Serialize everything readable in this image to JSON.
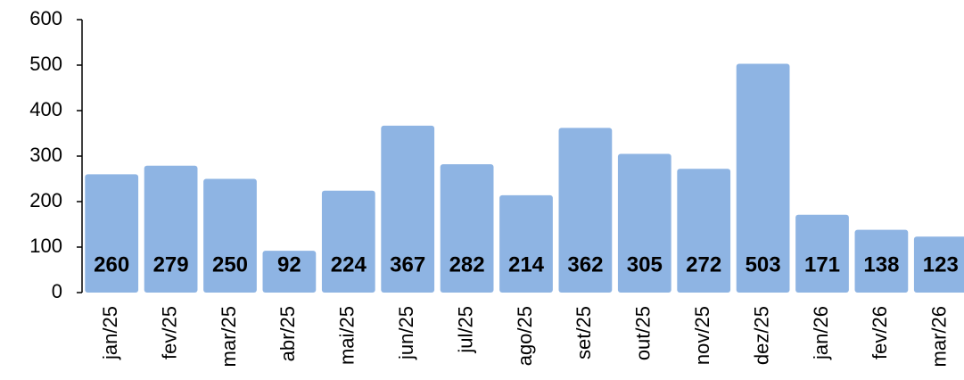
{
  "chart_data": {
    "type": "bar",
    "categories": [
      "jan/25",
      "fev/25",
      "mar/25",
      "abr/25",
      "mai/25",
      "jun/25",
      "jul/25",
      "ago/25",
      "set/25",
      "out/25",
      "nov/25",
      "dez/25",
      "jan/26",
      "fev/26",
      "mar/26"
    ],
    "values": [
      260,
      279,
      250,
      92,
      224,
      367,
      282,
      214,
      362,
      305,
      272,
      503,
      171,
      138,
      123
    ],
    "color": "#8EB4E3",
    "ylim": [
      0,
      600
    ],
    "yticks": [
      0,
      100,
      200,
      300,
      400,
      500,
      600
    ],
    "grid": false
  }
}
